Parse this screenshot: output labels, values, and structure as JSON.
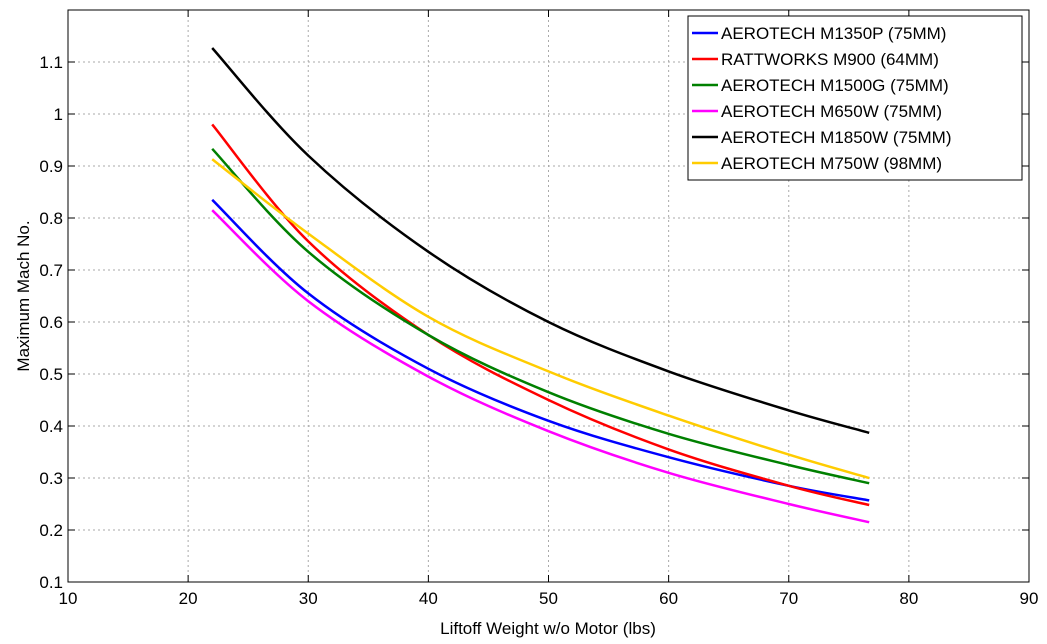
{
  "chart_data": {
    "type": "line",
    "title": "",
    "xlabel": "Liftoff Weight w/o Motor (lbs)",
    "ylabel": "Maximum Mach No.",
    "xlim": [
      10,
      90
    ],
    "ylim": [
      0.1,
      1.2
    ],
    "xticks": [
      10,
      20,
      30,
      40,
      50,
      60,
      70,
      80,
      90
    ],
    "yticks": [
      0.1,
      0.2,
      0.3,
      0.4,
      0.5,
      0.6,
      0.7,
      0.8,
      0.9,
      1,
      1.1
    ],
    "xtick_labels": [
      "10",
      "20",
      "30",
      "40",
      "50",
      "60",
      "70",
      "80",
      "90"
    ],
    "ytick_labels": [
      "0.1",
      "0.2",
      "0.3",
      "0.4",
      "0.5",
      "0.6",
      "0.7",
      "0.8",
      "0.9",
      "1",
      "1.1"
    ],
    "grid": true,
    "legend_position": "top-right",
    "x": [
      22,
      30,
      40,
      50,
      60,
      70,
      76.7
    ],
    "series": [
      {
        "name": "AEROTECH M1350P (75MM)",
        "color": "#0000ff",
        "values": [
          0.835,
          0.655,
          0.51,
          0.41,
          0.34,
          0.285,
          0.257
        ]
      },
      {
        "name": "RATTWORKS M900 (64MM)",
        "color": "#ff0000",
        "values": [
          0.98,
          0.755,
          0.575,
          0.45,
          0.355,
          0.285,
          0.248
        ]
      },
      {
        "name": "AEROTECH M1500G (75MM)",
        "color": "#008000",
        "values": [
          0.933,
          0.735,
          0.575,
          0.465,
          0.385,
          0.325,
          0.29
        ]
      },
      {
        "name": "AEROTECH M650W (75MM)",
        "color": "#ff00ff",
        "values": [
          0.815,
          0.64,
          0.495,
          0.39,
          0.31,
          0.25,
          0.215
        ]
      },
      {
        "name": "AEROTECH M1850W (75MM)",
        "color": "#000000",
        "values": [
          1.127,
          0.92,
          0.735,
          0.6,
          0.505,
          0.43,
          0.387
        ]
      },
      {
        "name": "AEROTECH M750W (98MM)",
        "color": "#ffcc00",
        "values": [
          0.913,
          0.77,
          0.61,
          0.505,
          0.42,
          0.345,
          0.3
        ]
      }
    ]
  }
}
